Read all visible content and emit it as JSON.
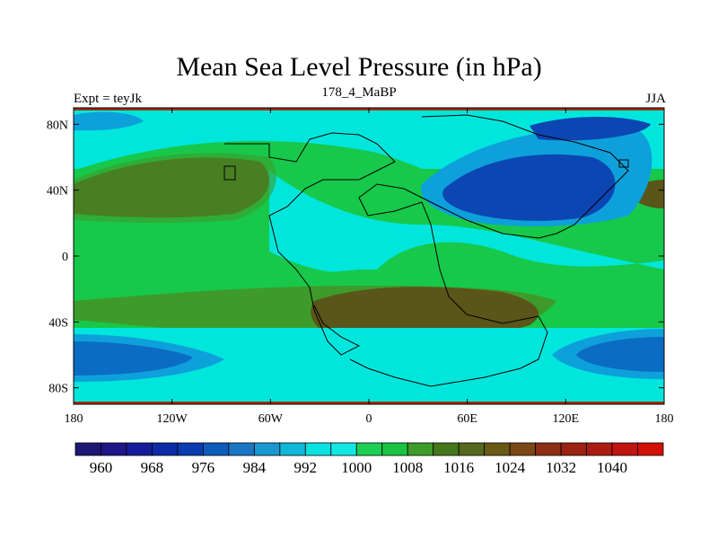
{
  "title": "Mean Sea Level Pressure (in hPa)",
  "left_label": "Expt = teyJk",
  "center_label": "178_4_MaBP",
  "right_label": "JJA",
  "x_ticks": [
    "180",
    "120W",
    "60W",
    "0",
    "60E",
    "120E",
    "180"
  ],
  "y_ticks": [
    "80N",
    "40N",
    "0",
    "40S",
    "80S"
  ],
  "colorbar": {
    "colors": [
      "#1d1873",
      "#1c1686",
      "#161d9a",
      "#0d2ba7",
      "#0b3bb0",
      "#0e5bbc",
      "#1a76c4",
      "#1898cf",
      "#0fb7d8",
      "#0ae1e1",
      "#14e6e3",
      "#1ccf55",
      "#18c442",
      "#3f9c2a",
      "#44771a",
      "#55681d",
      "#6a5815",
      "#7c4716",
      "#8e2f14",
      "#9b2311",
      "#ad1a12",
      "#c2140e",
      "#d21006"
    ],
    "labels": [
      "960",
      "968",
      "976",
      "984",
      "992",
      "1000",
      "1008",
      "1016",
      "1024",
      "1032",
      "1040"
    ]
  },
  "map_colors": {
    "ocean_low": "#00e6dc",
    "mid_green": "#17c84a",
    "dark_green": "#3e9b2b",
    "brown": "#5a5518",
    "blue_mid": "#0ea0da",
    "blue_dark": "#0b6cc4",
    "blue_deep": "#0b46b3",
    "edge_brown": "#a03010"
  }
}
